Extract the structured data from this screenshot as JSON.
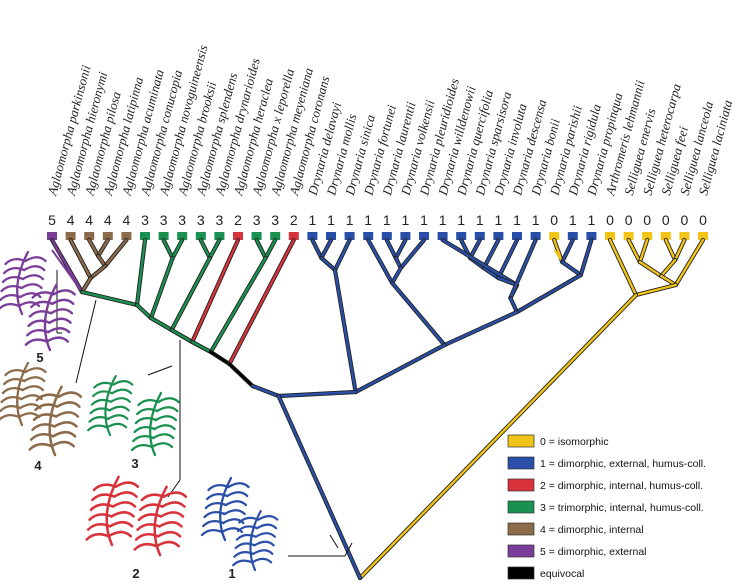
{
  "taxa": [
    {
      "name": "Aglaomorpha parkinsonii",
      "state": "5"
    },
    {
      "name": "Aglaomorpha hieronymi",
      "state": "4"
    },
    {
      "name": "Aglaomorpha pilosa",
      "state": "4"
    },
    {
      "name": "Aglaomorpha latipinna",
      "state": "4"
    },
    {
      "name": "Aglaomorpha acuminata",
      "state": "4"
    },
    {
      "name": "Aglaomorpha conucopia",
      "state": "3"
    },
    {
      "name": "Aglaomorpha novoguineensis",
      "state": "3"
    },
    {
      "name": "Aglaomorpha brooksii",
      "state": "3"
    },
    {
      "name": "Aglaomorpha splendens",
      "state": "3"
    },
    {
      "name": "Aglaomorpha drynarioides",
      "state": "3"
    },
    {
      "name": "Aglaomorpha heraclea",
      "state": "2"
    },
    {
      "name": "Aglaomorpha x leporella",
      "state": "3"
    },
    {
      "name": "Aglaomorpha meyeniana",
      "state": "3"
    },
    {
      "name": "Aglaomorpha coronans",
      "state": "2"
    },
    {
      "name": "Drynaria delavayi",
      "state": "1"
    },
    {
      "name": "Drynaria mollis",
      "state": "1"
    },
    {
      "name": "Drynaria sinica",
      "state": "1"
    },
    {
      "name": "Drynaria fortunei",
      "state": "1"
    },
    {
      "name": "Drynaria laurentii",
      "state": "1"
    },
    {
      "name": "Drynaria volkensii",
      "state": "1"
    },
    {
      "name": "Drynaria pleuridioides",
      "state": "1"
    },
    {
      "name": "Drynaria willdenowii",
      "state": "1"
    },
    {
      "name": "Drynaria quercifolia",
      "state": "1"
    },
    {
      "name": "Drynaria sparsisora",
      "state": "1"
    },
    {
      "name": "Drynaria involuta",
      "state": "1"
    },
    {
      "name": "Drynaria descensa",
      "state": "1"
    },
    {
      "name": "Drynaria bonii",
      "state": "1"
    },
    {
      "name": "Drynaria parishii",
      "state": "0"
    },
    {
      "name": "Drynaria rigidula",
      "state": "1"
    },
    {
      "name": "Drynaria propinqua",
      "state": "1"
    },
    {
      "name": "Arthromeris lehmannii",
      "state": "0"
    },
    {
      "name": "Selliguea enervis",
      "state": "0"
    },
    {
      "name": "Selliguea heterocarpa",
      "state": "0"
    },
    {
      "name": "Selliguea feei",
      "state": "0"
    },
    {
      "name": "Selliguea lanceola",
      "state": "0"
    },
    {
      "name": "Selliguea laciniata",
      "state": "0"
    }
  ],
  "legend": [
    {
      "color": "#f2c418",
      "label": "0 = isomorphic"
    },
    {
      "color": "#2a4fa8",
      "label": "1 = dimorphic, external, humus-coll."
    },
    {
      "color": "#d8333a",
      "label": "2 = dimorphic, internal, humus-coll."
    },
    {
      "color": "#1a9150",
      "label": "3 = trimorphic, internal, humus-coll."
    },
    {
      "color": "#8c6b4a",
      "label": "4 = dimorphic, internal"
    },
    {
      "color": "#7b3d9a",
      "label": "5 = dimorphic, external"
    },
    {
      "color": "#000000",
      "label": "equivocal"
    }
  ],
  "colors": {
    "0": "#f2c418",
    "1": "#2a4fa8",
    "2": "#d8333a",
    "3": "#1a9150",
    "4": "#8c6b4a",
    "5": "#7b3d9a",
    "equivocal": "#000000"
  },
  "illustrations": [
    {
      "label": "5",
      "color": "#7b3d9a",
      "icon": "fern-frond"
    },
    {
      "label": "4",
      "color": "#8c6b4a",
      "icon": "fern-frond"
    },
    {
      "label": "3",
      "color": "#1a9150",
      "icon": "fern-frond"
    },
    {
      "label": "2",
      "color": "#d8333a",
      "icon": "fern-frond"
    },
    {
      "label": "1",
      "color": "#2a4fa8",
      "icon": "fern-frond"
    }
  ]
}
